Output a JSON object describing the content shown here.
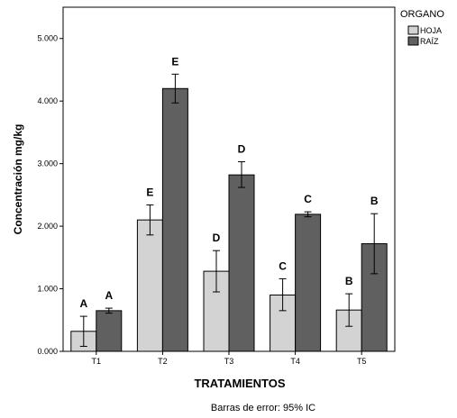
{
  "chart_data": {
    "type": "bar",
    "xlabel": "TRATAMIENTOS",
    "ylabel": "Concentración mg/kg",
    "ylim": [
      0,
      5500
    ],
    "yticks": [
      0,
      1000,
      2000,
      3000,
      4000,
      5000
    ],
    "ytick_labels": [
      "0.000",
      "1.000",
      "2.000",
      "3.000",
      "4.000",
      "5.000"
    ],
    "categories": [
      "T1",
      "T2",
      "T3",
      "T4",
      "T5"
    ],
    "legend": {
      "title": "ORGANO",
      "placement": "top-right, outside plot"
    },
    "series": [
      {
        "name": "HOJA",
        "color": "#d3d3d3",
        "values": [
          320,
          2100,
          1280,
          900,
          660
        ],
        "ci_low": [
          80,
          1860,
          950,
          650,
          400
        ],
        "ci_high": [
          560,
          2340,
          1610,
          1160,
          920
        ],
        "sig_labels": [
          "A",
          "E",
          "D",
          "C",
          "B"
        ]
      },
      {
        "name": "RAÍZ",
        "color": "#606060",
        "values": [
          650,
          4200,
          2820,
          2190,
          1720
        ],
        "ci_low": [
          610,
          3970,
          2620,
          2150,
          1240
        ],
        "ci_high": [
          690,
          4430,
          3030,
          2230,
          2200
        ],
        "sig_labels": [
          "A",
          "E",
          "D",
          "C",
          "B"
        ]
      }
    ],
    "footnote": "Barras de error: 95% IC",
    "grid": false
  }
}
